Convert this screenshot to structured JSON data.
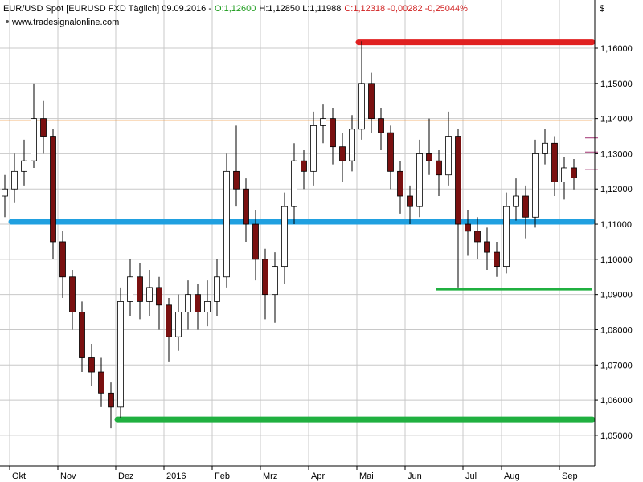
{
  "chart_data": {
    "type": "candlestick",
    "title": "EUR/USD Spot [EURUSD FXD  Täglich] 09.09.2016 -",
    "quote_open": "O:1,12600",
    "quote_range": "H:1,12850 L:1,11988",
    "quote_change": "C:1,12318 -0,00282 -0,25044%",
    "source": "www.tradesignalonline.com",
    "unit": "$",
    "categories": [
      null,
      "Okt",
      null,
      null,
      null,
      null,
      "Nov",
      null,
      null,
      null,
      null,
      null,
      "Dez",
      null,
      null,
      null,
      null,
      "2016",
      null,
      null,
      null,
      null,
      "Feb",
      null,
      null,
      null,
      null,
      "Mrz",
      null,
      null,
      null,
      null,
      "Apr",
      null,
      null,
      null,
      null,
      "Mai",
      null,
      null,
      null,
      null,
      "Jun",
      null,
      null,
      null,
      null,
      null,
      "Jul",
      null,
      null,
      null,
      "Aug",
      null,
      null,
      null,
      null,
      null,
      "Sep",
      null
    ],
    "open": [
      1.118,
      1.12,
      1.125,
      1.128,
      1.14,
      1.135,
      1.105,
      1.095,
      1.085,
      1.072,
      1.068,
      1.062,
      1.058,
      1.088,
      1.095,
      1.088,
      1.092,
      1.087,
      1.078,
      1.085,
      1.09,
      1.085,
      1.088,
      1.095,
      1.125,
      1.12,
      1.11,
      1.1,
      1.09,
      1.098,
      1.115,
      1.128,
      1.125,
      1.138,
      1.14,
      1.132,
      1.128,
      1.137,
      1.15,
      1.14,
      1.136,
      1.125,
      1.118,
      1.115,
      1.13,
      1.128,
      1.124,
      1.135,
      1.11,
      1.108,
      1.105,
      1.102,
      1.098,
      1.115,
      1.118,
      1.112,
      1.13,
      1.133,
      1.122,
      1.126
    ],
    "high": [
      1.124,
      1.13,
      1.134,
      1.15,
      1.145,
      1.137,
      1.108,
      1.097,
      1.088,
      1.076,
      1.072,
      1.065,
      1.092,
      1.1,
      1.099,
      1.097,
      1.095,
      1.089,
      1.09,
      1.094,
      1.093,
      1.094,
      1.1,
      1.13,
      1.138,
      1.123,
      1.114,
      1.103,
      1.102,
      1.119,
      1.133,
      1.131,
      1.142,
      1.144,
      1.143,
      1.136,
      1.141,
      1.162,
      1.153,
      1.143,
      1.138,
      1.128,
      1.121,
      1.134,
      1.14,
      1.131,
      1.142,
      1.137,
      1.114,
      1.112,
      1.109,
      1.105,
      1.119,
      1.123,
      1.121,
      1.134,
      1.137,
      1.135,
      1.129,
      1.1285
    ],
    "low": [
      1.112,
      1.116,
      1.121,
      1.126,
      1.13,
      1.1,
      1.089,
      1.08,
      1.068,
      1.064,
      1.058,
      1.052,
      1.055,
      1.084,
      1.083,
      1.084,
      1.08,
      1.071,
      1.074,
      1.08,
      1.08,
      1.081,
      1.084,
      1.092,
      1.115,
      1.105,
      1.094,
      1.083,
      1.082,
      1.093,
      1.11,
      1.12,
      1.121,
      1.133,
      1.127,
      1.122,
      1.125,
      1.134,
      1.136,
      1.131,
      1.12,
      1.113,
      1.11,
      1.112,
      1.124,
      1.118,
      1.121,
      1.092,
      1.101,
      1.1,
      1.097,
      1.095,
      1.096,
      1.111,
      1.106,
      1.109,
      1.127,
      1.118,
      1.117,
      1.11988
    ],
    "close": [
      1.12,
      1.125,
      1.128,
      1.14,
      1.135,
      1.105,
      1.095,
      1.085,
      1.072,
      1.068,
      1.062,
      1.058,
      1.088,
      1.095,
      1.088,
      1.092,
      1.087,
      1.078,
      1.085,
      1.09,
      1.085,
      1.088,
      1.095,
      1.125,
      1.12,
      1.11,
      1.1,
      1.09,
      1.098,
      1.115,
      1.128,
      1.125,
      1.138,
      1.14,
      1.132,
      1.128,
      1.137,
      1.15,
      1.14,
      1.136,
      1.125,
      1.118,
      1.115,
      1.13,
      1.128,
      1.124,
      1.135,
      1.11,
      1.108,
      1.105,
      1.102,
      1.098,
      1.115,
      1.118,
      1.112,
      1.13,
      1.133,
      1.122,
      1.126,
      1.12318
    ],
    "up_color": "#ffffff",
    "down_color": "#7a1010",
    "grid": true,
    "ylim": [
      1.0413,
      1.1737
    ],
    "yticks": [
      {
        "value": 1.05,
        "label": "1,05000"
      },
      {
        "value": 1.06,
        "label": "1,06000"
      },
      {
        "value": 1.07,
        "label": "1,07000"
      },
      {
        "value": 1.08,
        "label": "1,08000"
      },
      {
        "value": 1.09,
        "label": "1,09000"
      },
      {
        "value": 1.1,
        "label": "1,10000"
      },
      {
        "value": 1.11,
        "label": "1,11000"
      },
      {
        "value": 1.12,
        "label": "1,12000"
      },
      {
        "value": 1.13,
        "label": "1,13000"
      },
      {
        "value": 1.14,
        "label": "1,14000"
      },
      {
        "value": 1.15,
        "label": "1,15000"
      },
      {
        "value": 1.16,
        "label": "1,16000"
      }
    ],
    "levels": [
      {
        "value": 1.1395,
        "color": "#f0a050",
        "start": 0,
        "style": "thin"
      },
      {
        "value": 1.1617,
        "color": "#e02020",
        "start": 37,
        "style": "thick"
      },
      {
        "value": 1.1107,
        "color": "#20a0e0",
        "start": 1,
        "style": "thick"
      },
      {
        "value": 1.0915,
        "color": "#20b040",
        "start": 45,
        "style": "medium"
      },
      {
        "value": 1.0545,
        "color": "#20b040",
        "start": 12,
        "style": "thick"
      }
    ],
    "markers": {
      "values": [
        1.1345,
        1.1305,
        1.1255
      ],
      "color": "#a03070"
    }
  }
}
